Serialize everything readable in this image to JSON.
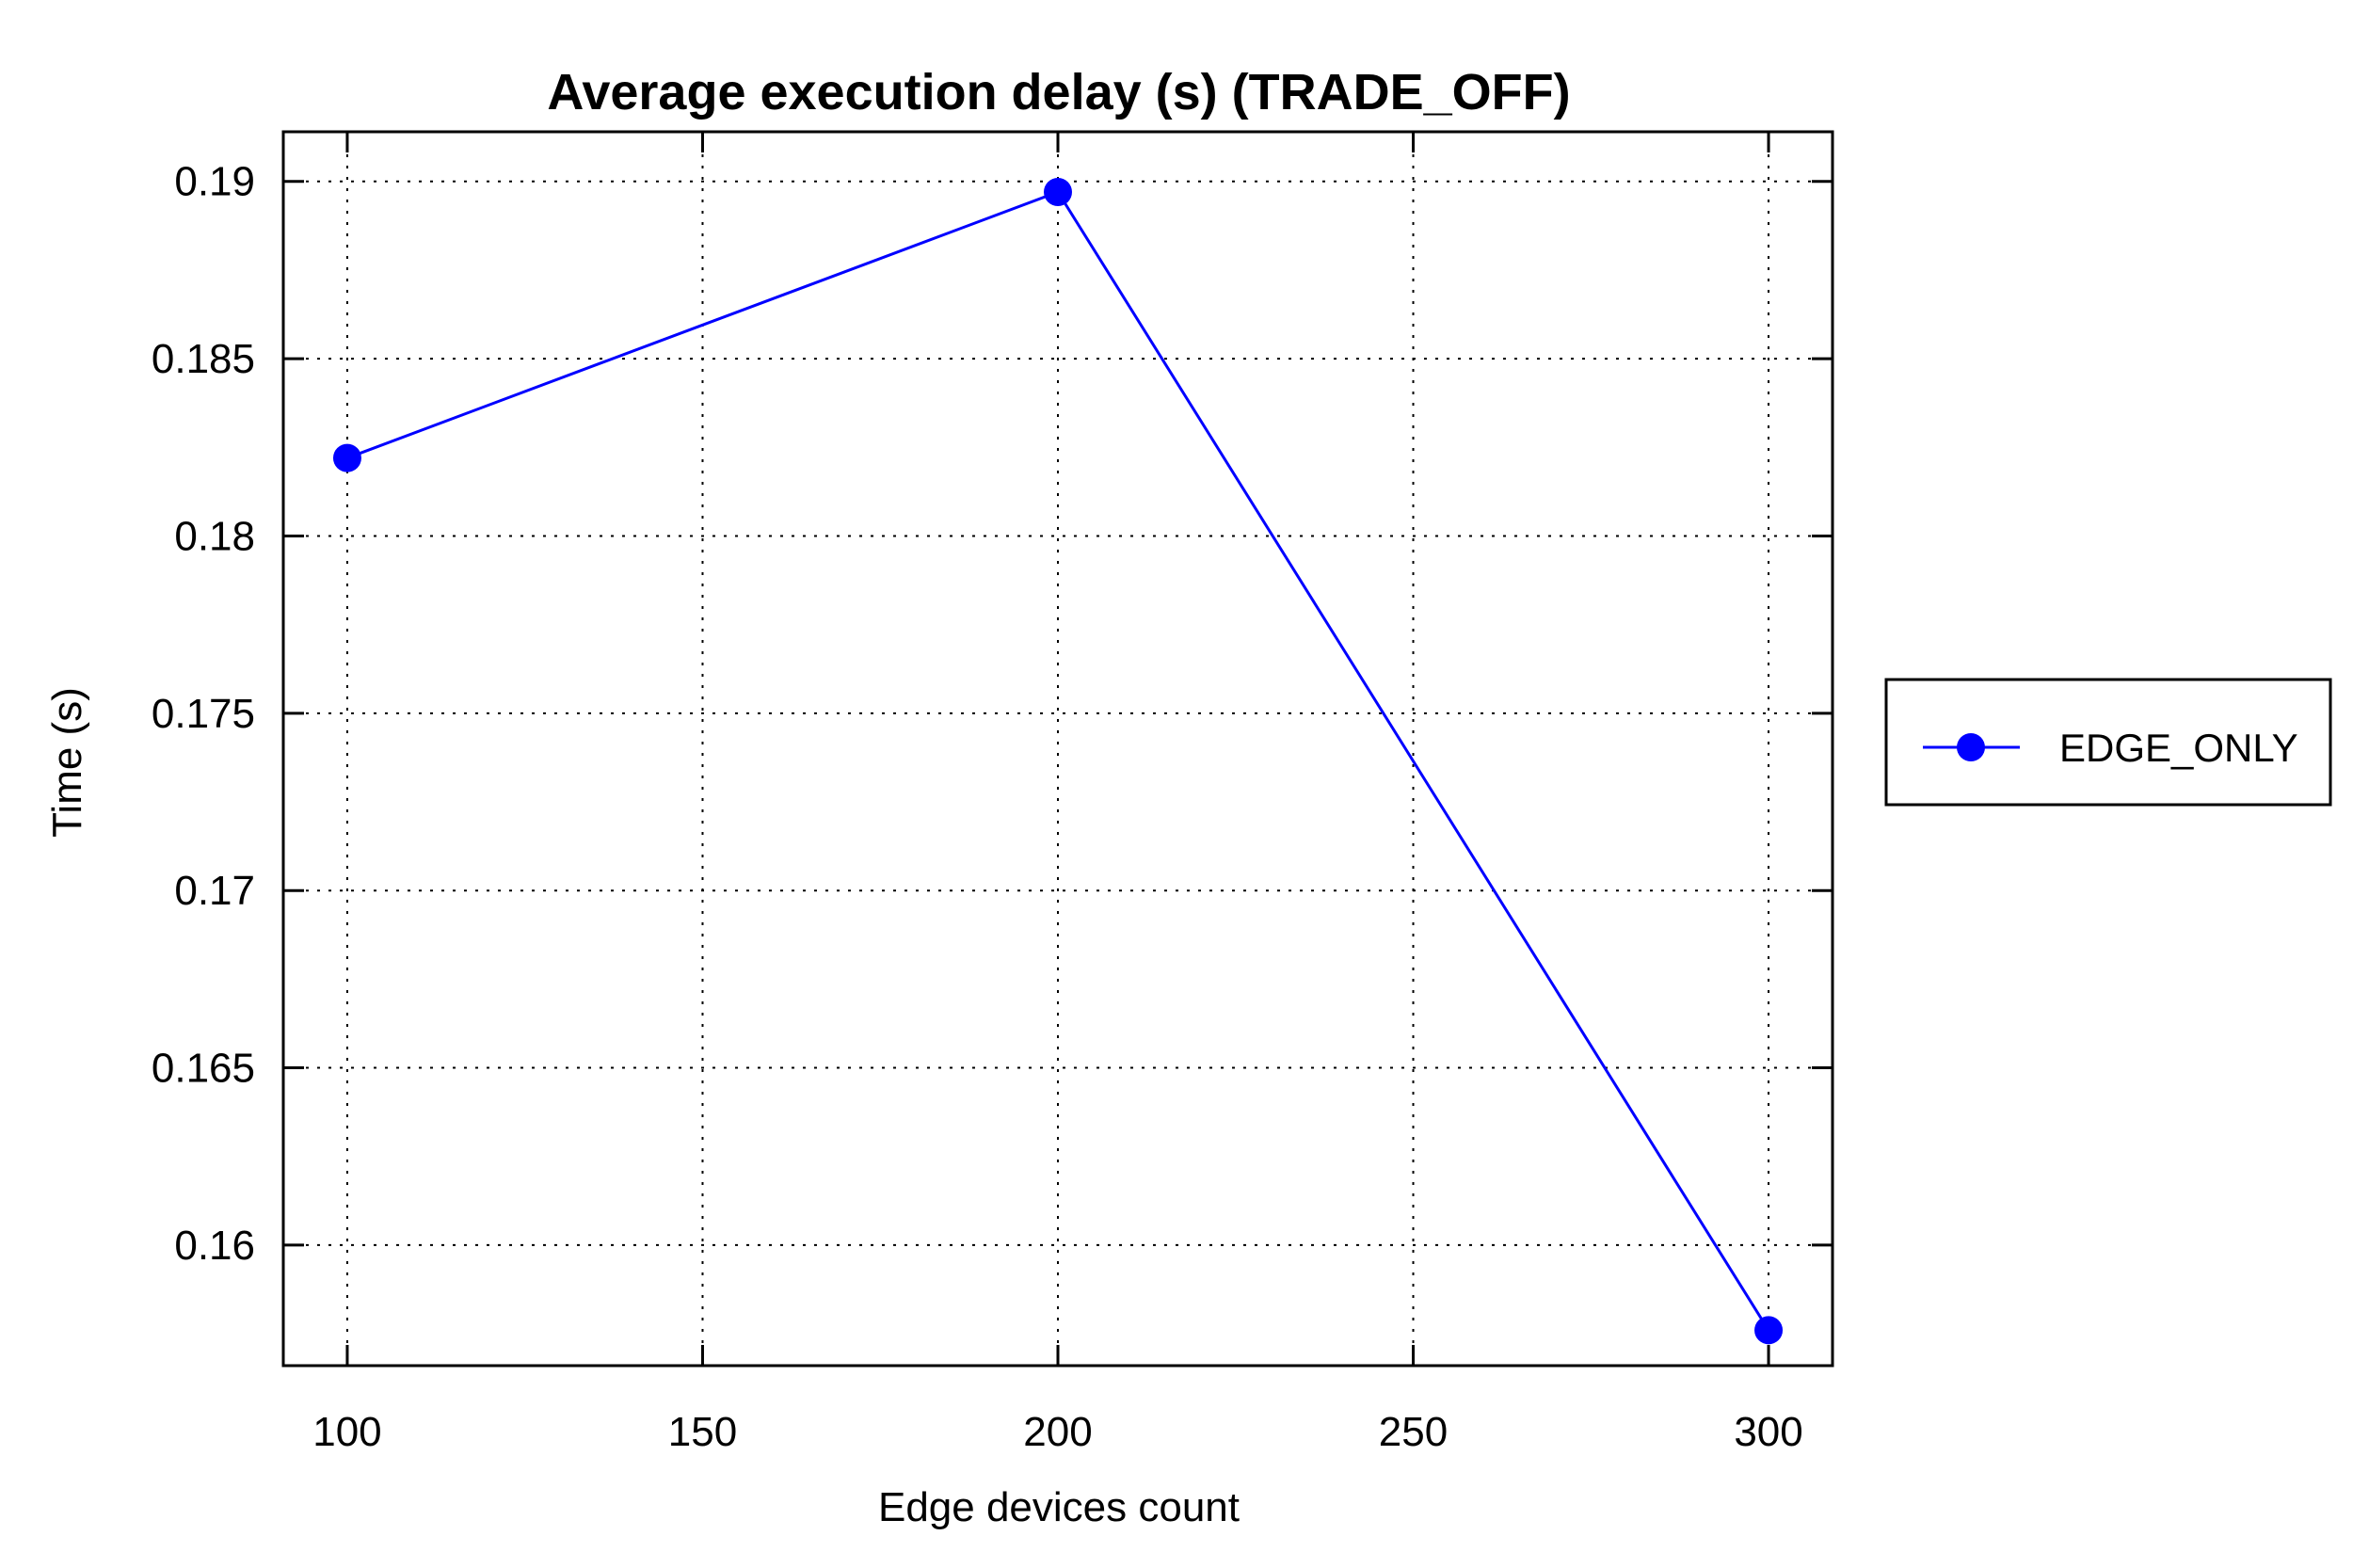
{
  "chart_data": {
    "type": "line",
    "title": "Average execution delay (s) (TRADE_OFF)",
    "xlabel": "Edge devices count",
    "ylabel": "Time (s)",
    "xlim": [
      91,
      309
    ],
    "ylim": [
      0.1566,
      0.1914
    ],
    "xticks": [
      100,
      150,
      200,
      250,
      300
    ],
    "xtick_labels": [
      "100",
      "150",
      "200",
      "250",
      "300"
    ],
    "yticks": [
      0.16,
      0.165,
      0.17,
      0.175,
      0.18,
      0.185,
      0.19
    ],
    "ytick_labels": [
      "0.16",
      "0.165",
      "0.17",
      "0.175",
      "0.18",
      "0.185",
      "0.19"
    ],
    "grid": true,
    "legend_position": "outside-right",
    "series": [
      {
        "name": "EDGE_ONLY",
        "color": "#0000ff",
        "marker": "circle",
        "x": [
          100,
          200,
          300
        ],
        "y": [
          0.1822,
          0.1897,
          0.1576
        ]
      }
    ]
  }
}
